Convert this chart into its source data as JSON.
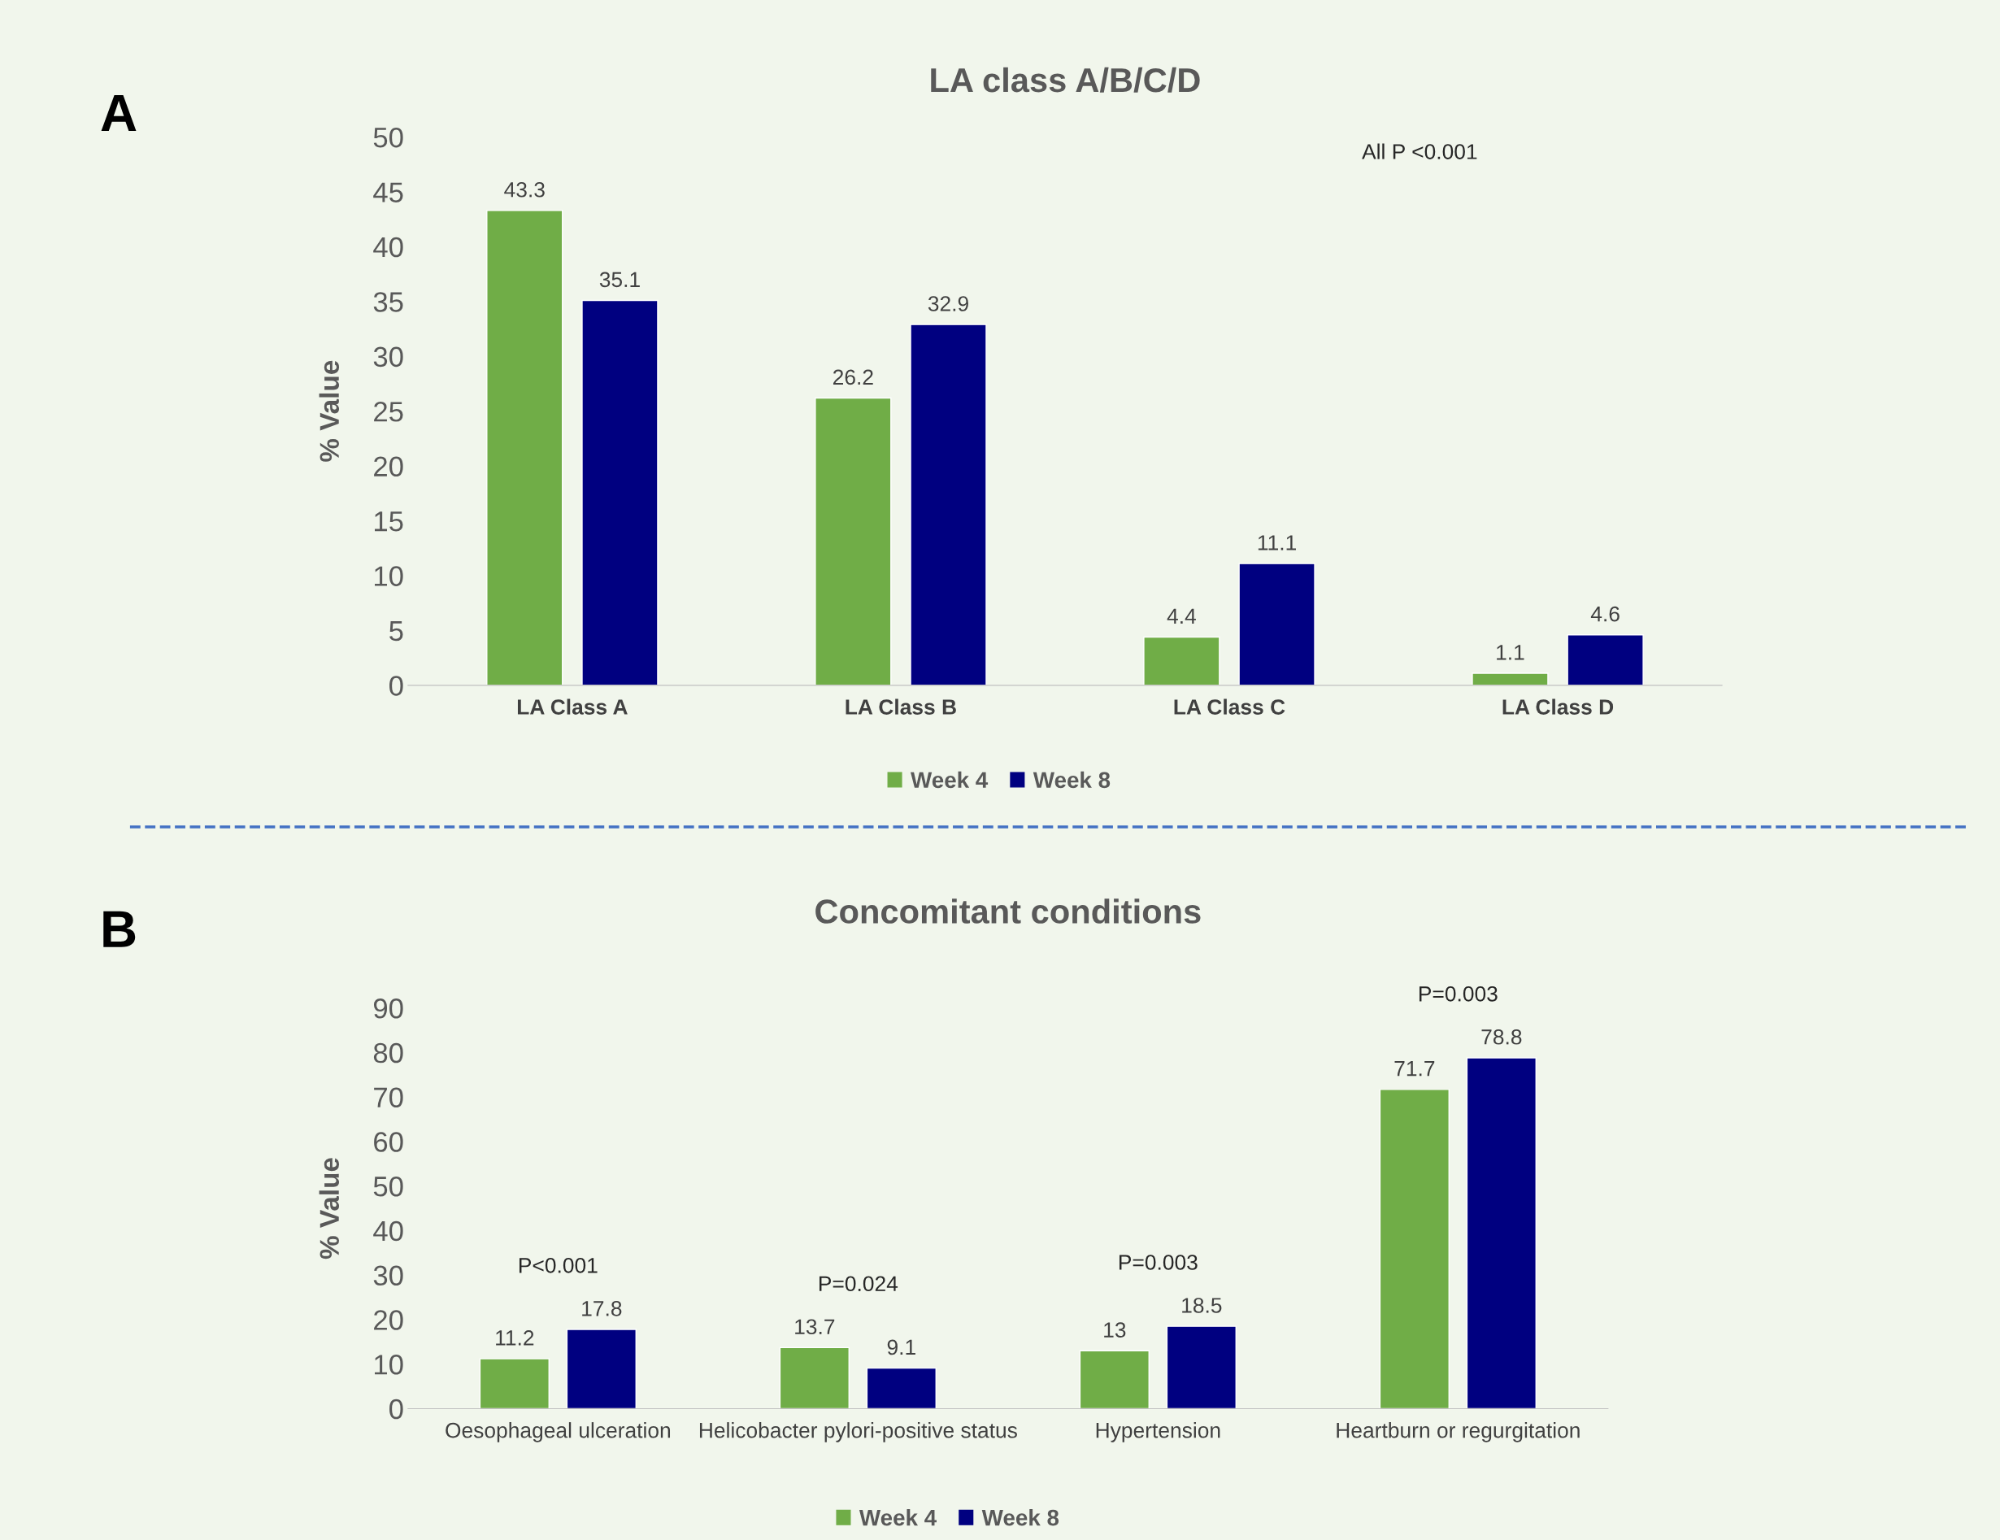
{
  "chart_data": [
    {
      "type": "bar",
      "title": "LA class A/B/C/D",
      "ylabel": "% Value",
      "categories": [
        "LA Class A",
        "LA Class B",
        "LA Class C",
        "LA Class D"
      ],
      "series": [
        {
          "name": "Week 4",
          "color": "#70ad47",
          "values": [
            43.3,
            26.2,
            4.4,
            1.1
          ]
        },
        {
          "name": "Week 8",
          "color": "#000080",
          "values": [
            35.1,
            32.9,
            11.1,
            4.6
          ]
        }
      ],
      "ylim": [
        0,
        50
      ],
      "yticks": [
        0,
        5,
        10,
        15,
        20,
        25,
        30,
        35,
        40,
        45,
        50
      ],
      "data_labels": true,
      "legend": "bottom",
      "grid": false,
      "annotations": [
        "A",
        "All P <0.001"
      ]
    },
    {
      "type": "bar",
      "title": "Concomitant conditions",
      "ylabel": "% Value",
      "categories": [
        "Oesophageal ulceration",
        "Helicobacter pylori-positive status",
        "Hypertension",
        "Heartburn or regurgitation"
      ],
      "series": [
        {
          "name": "Week 4",
          "color": "#70ad47",
          "values": [
            11.2,
            13.7,
            13,
            71.7
          ]
        },
        {
          "name": "Week 8",
          "color": "#000080",
          "values": [
            17.8,
            9.1,
            18.5,
            78.8
          ]
        }
      ],
      "ylim": [
        0,
        90
      ],
      "yticks": [
        0,
        10,
        20,
        30,
        40,
        50,
        60,
        70,
        80,
        90
      ],
      "data_labels": true,
      "legend": "bottom",
      "grid": false,
      "annotations": [
        "B",
        "P<0.001",
        "P=0.024",
        "P=0.003",
        "P=0.003"
      ]
    }
  ]
}
